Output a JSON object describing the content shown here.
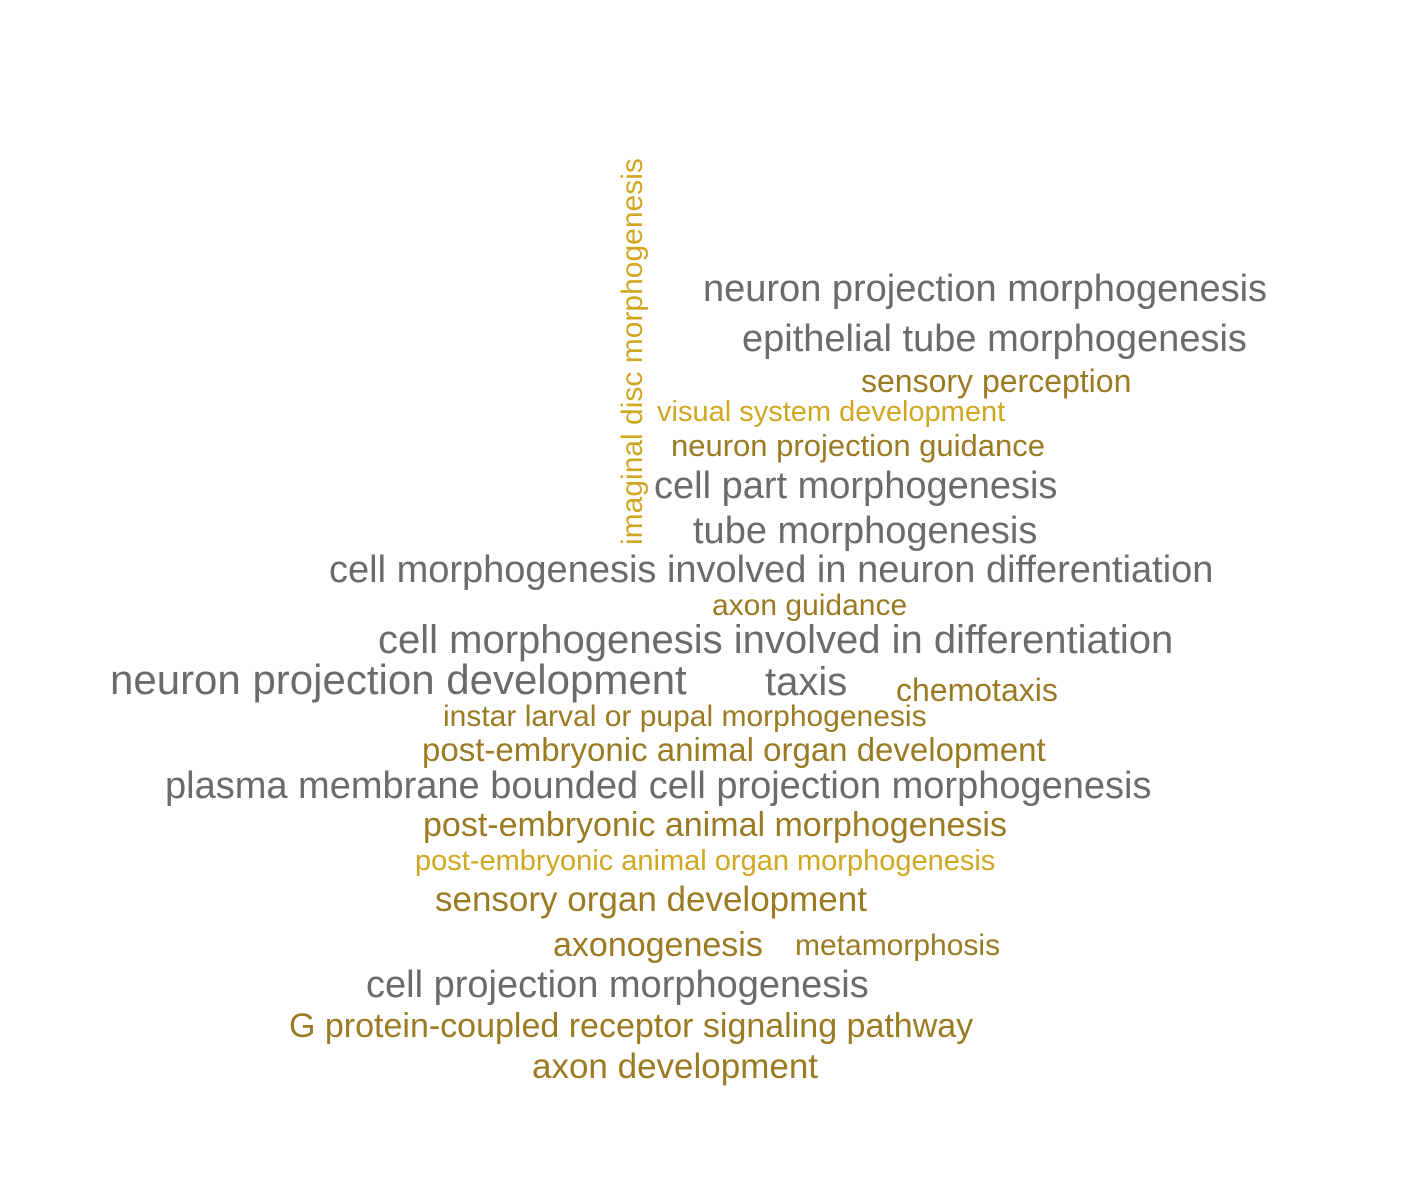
{
  "word_cloud": {
    "words": [
      {
        "text": "imaginal disc morphogenesis",
        "color": "#d0a722"
      },
      {
        "text": "neuron projection morphogenesis",
        "color": "#6b6b6d"
      },
      {
        "text": "epithelial tube morphogenesis",
        "color": "#6b6b6d"
      },
      {
        "text": "sensory perception",
        "color": "#9a7b23"
      },
      {
        "text": "visual system development",
        "color": "#d0a722"
      },
      {
        "text": "neuron projection guidance",
        "color": "#9a7b23"
      },
      {
        "text": "cell part morphogenesis",
        "color": "#6b6b6d"
      },
      {
        "text": "tube morphogenesis",
        "color": "#6b6b6d"
      },
      {
        "text": "cell morphogenesis involved in neuron differentiation",
        "color": "#6b6b6d"
      },
      {
        "text": "axon guidance",
        "color": "#9a7b23"
      },
      {
        "text": "cell morphogenesis involved in differentiation",
        "color": "#6b6b6d"
      },
      {
        "text": "neuron projection development",
        "color": "#6b6b6d"
      },
      {
        "text": "taxis",
        "color": "#6b6b6d"
      },
      {
        "text": "chemotaxis",
        "color": "#9a7b23"
      },
      {
        "text": "instar larval or pupal morphogenesis",
        "color": "#9a7b23"
      },
      {
        "text": "post-embryonic animal organ development",
        "color": "#9a7b23"
      },
      {
        "text": "plasma membrane bounded cell projection morphogenesis",
        "color": "#6b6b6d"
      },
      {
        "text": "post-embryonic animal morphogenesis",
        "color": "#9a7b23"
      },
      {
        "text": "post-embryonic animal organ morphogenesis",
        "color": "#d0a722"
      },
      {
        "text": "sensory organ development",
        "color": "#9a7b23"
      },
      {
        "text": "axonogenesis",
        "color": "#9a7b23"
      },
      {
        "text": "metamorphosis",
        "color": "#9a7b23"
      },
      {
        "text": "cell projection morphogenesis",
        "color": "#6b6b6d"
      },
      {
        "text": "G protein-coupled receptor signaling pathway",
        "color": "#9a7b23"
      },
      {
        "text": "axon development",
        "color": "#9a7b23"
      }
    ]
  }
}
